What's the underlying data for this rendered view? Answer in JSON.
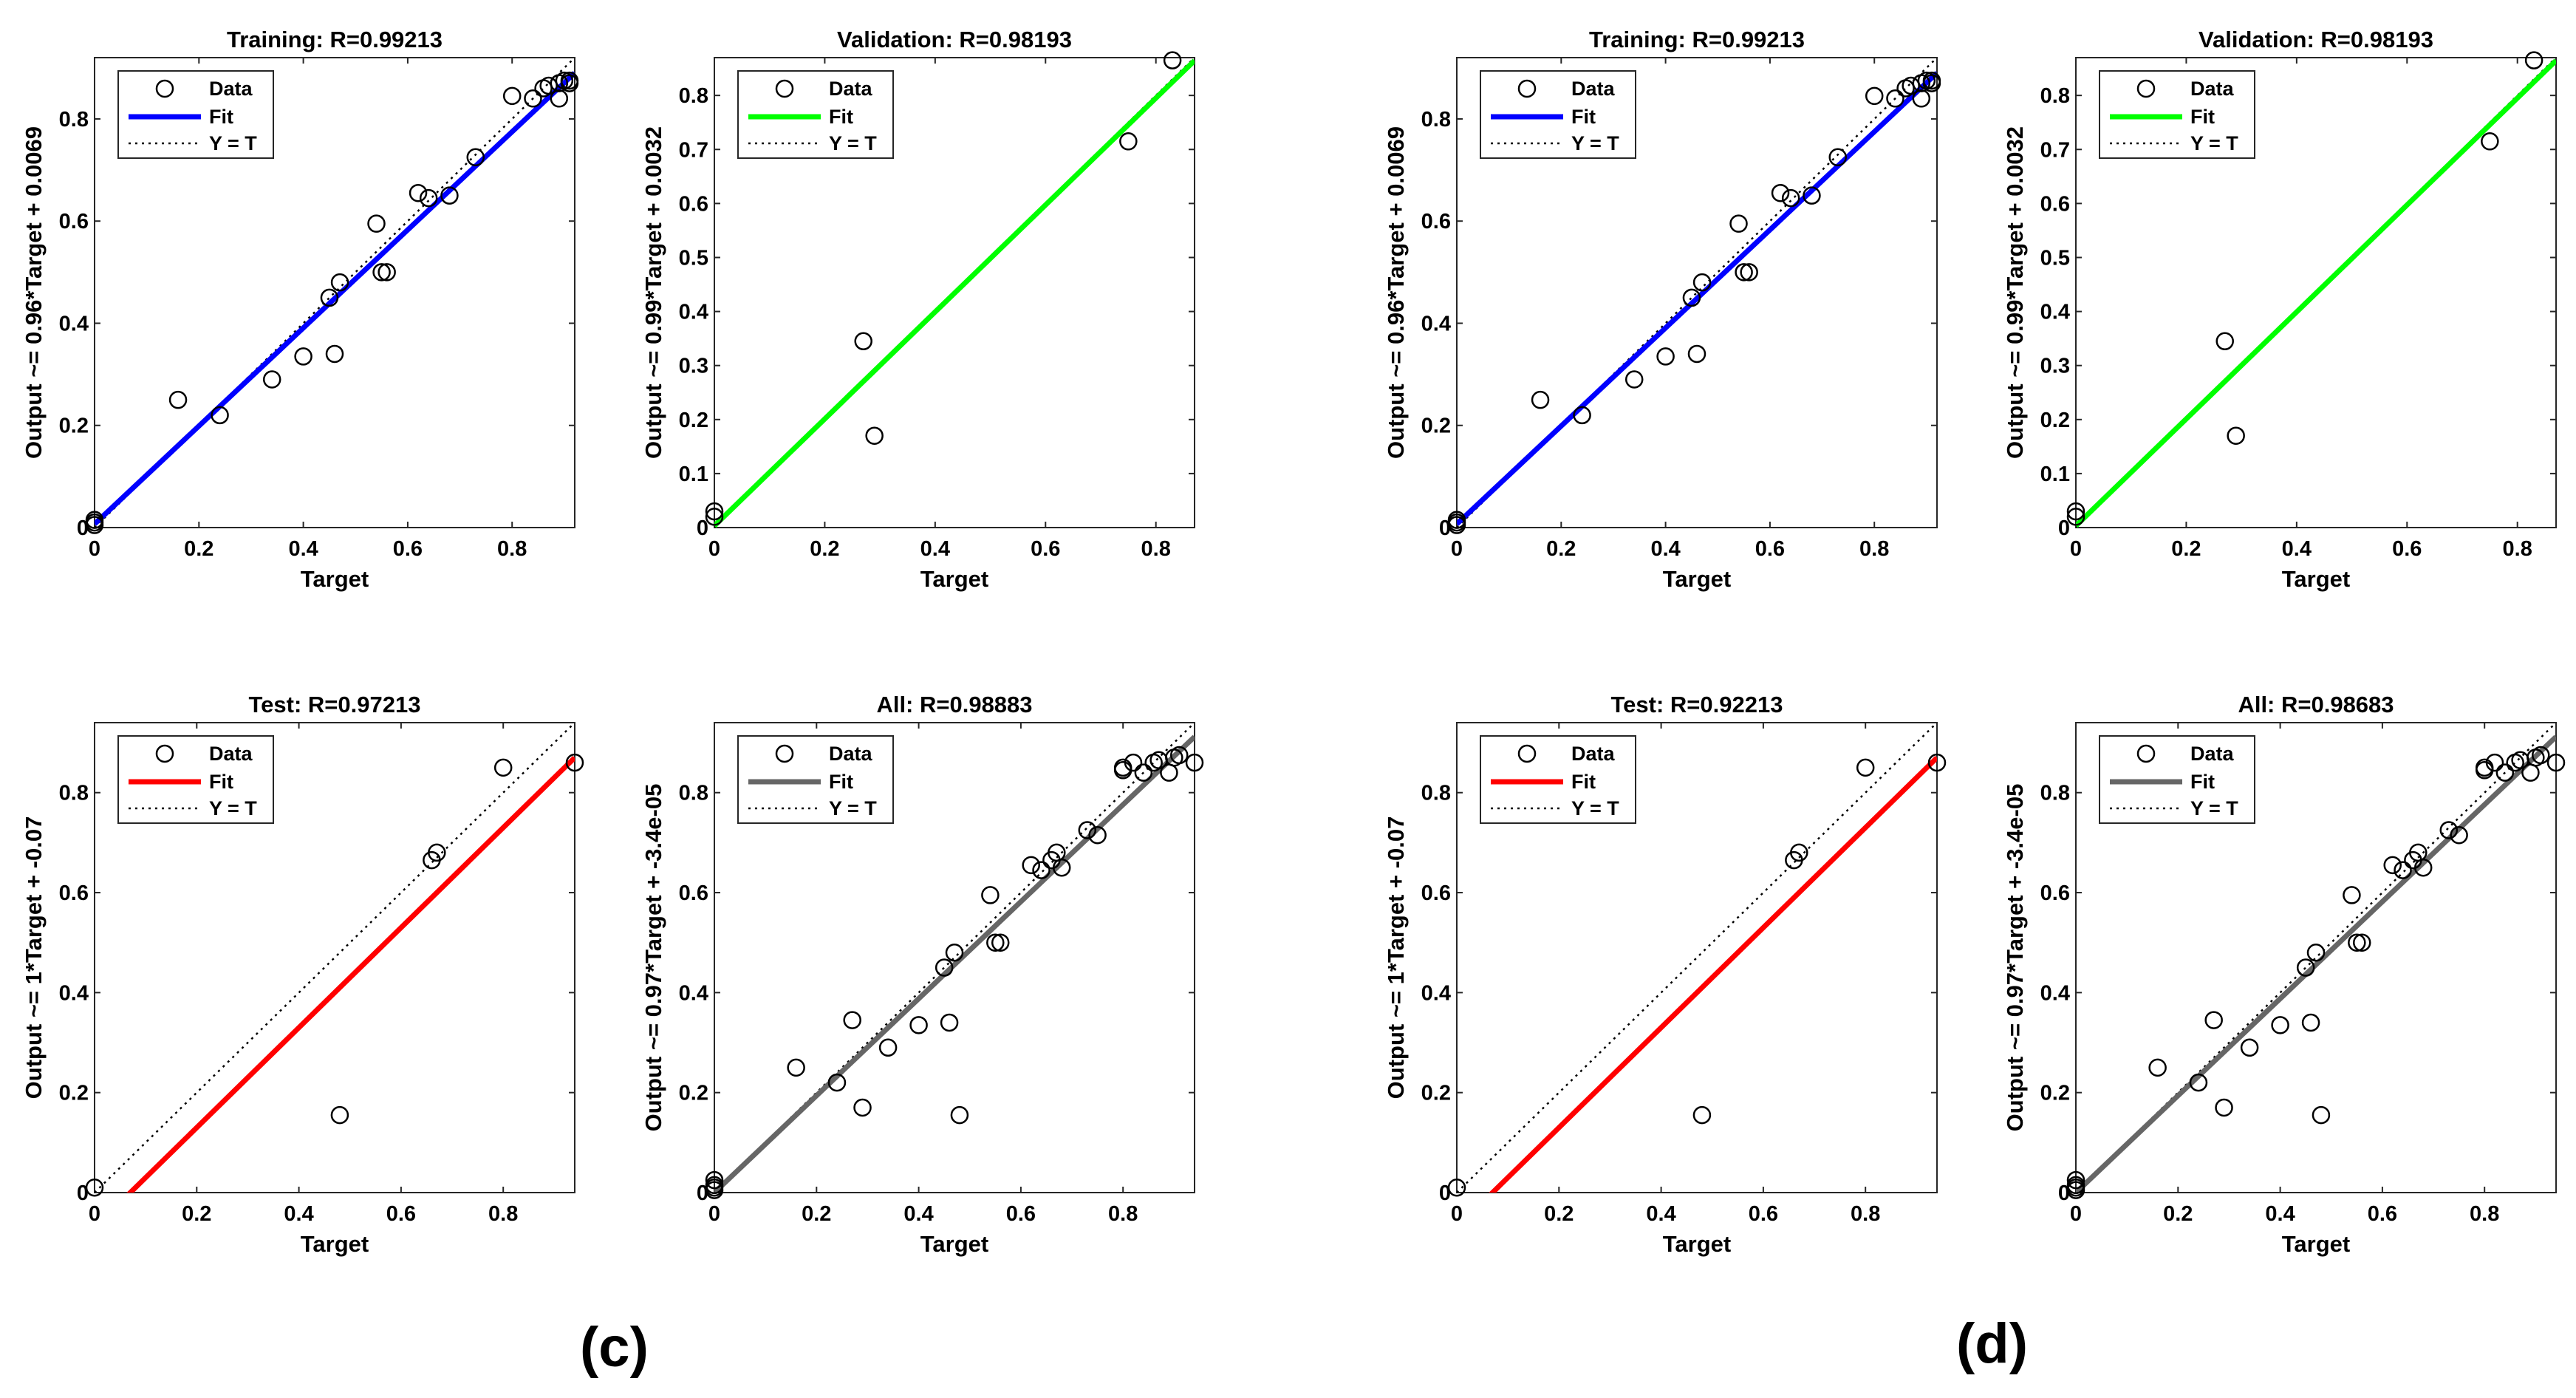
{
  "panel_labels": [
    "(c)",
    "(d)"
  ],
  "colors": {
    "training": "#0000ff",
    "validation": "#00ff00",
    "test": "#ff0000",
    "all": "#666666",
    "ideal": "#000000"
  },
  "chart_data": [
    {
      "type": "scatter",
      "group": "c",
      "title": "Training: R=0.99213",
      "xlabel": "Target",
      "ylabel": "Output ~= 0.96*Target + 0.0069",
      "xlim": [
        0,
        0.92
      ],
      "ylim": [
        0,
        0.92
      ],
      "xticks": [
        0,
        0.2,
        0.4,
        0.6,
        0.8
      ],
      "yticks": [
        0,
        0.2,
        0.4,
        0.6,
        0.8
      ],
      "legend": [
        "Data",
        "Fit",
        "Y = T"
      ],
      "legend_position": "top-left",
      "fit": {
        "slope": 0.96,
        "intercept": 0.0069,
        "color": "#0000ff"
      },
      "series": [
        {
          "name": "Data",
          "x": [
            0,
            0,
            0,
            0.16,
            0.24,
            0.34,
            0.4,
            0.45,
            0.46,
            0.47,
            0.54,
            0.55,
            0.56,
            0.62,
            0.64,
            0.68,
            0.73,
            0.8,
            0.84,
            0.86,
            0.87,
            0.89,
            0.89,
            0.9,
            0.91,
            0.91
          ],
          "y": [
            0.005,
            0.01,
            0.015,
            0.25,
            0.22,
            0.29,
            0.335,
            0.45,
            0.34,
            0.48,
            0.595,
            0.5,
            0.5,
            0.655,
            0.645,
            0.65,
            0.725,
            0.845,
            0.84,
            0.86,
            0.865,
            0.84,
            0.87,
            0.875,
            0.87,
            0.875
          ]
        }
      ]
    },
    {
      "type": "scatter",
      "group": "c",
      "title": "Validation: R=0.98193",
      "xlabel": "Target",
      "ylabel": "Output ~= 0.99*Target + 0.0032",
      "xlim": [
        0,
        0.87
      ],
      "ylim": [
        0,
        0.87
      ],
      "xticks": [
        0,
        0.2,
        0.4,
        0.6,
        0.8
      ],
      "yticks": [
        0,
        0.1,
        0.2,
        0.3,
        0.4,
        0.5,
        0.6,
        0.7,
        0.8
      ],
      "legend": [
        "Data",
        "Fit",
        "Y = T"
      ],
      "legend_position": "top-left",
      "fit": {
        "slope": 0.99,
        "intercept": 0.0032,
        "color": "#00ff00"
      },
      "series": [
        {
          "name": "Data",
          "x": [
            0,
            0,
            0.27,
            0.29,
            0.75,
            0.83
          ],
          "y": [
            0.02,
            0.03,
            0.345,
            0.17,
            0.715,
            0.865
          ]
        }
      ]
    },
    {
      "type": "scatter",
      "group": "c",
      "title": "Test: R=0.97213",
      "xlabel": "Target",
      "ylabel": "Output ~= 1*Target + -0.07",
      "xlim": [
        0,
        0.94
      ],
      "ylim": [
        0,
        0.94
      ],
      "xticks": [
        0,
        0.2,
        0.4,
        0.6,
        0.8
      ],
      "yticks": [
        0,
        0.2,
        0.4,
        0.6,
        0.8
      ],
      "legend": [
        "Data",
        "Fit",
        "Y = T"
      ],
      "legend_position": "top-left",
      "fit": {
        "slope": 1,
        "intercept": -0.07,
        "color": "#ff0000"
      },
      "series": [
        {
          "name": "Data",
          "x": [
            0,
            0.48,
            0.66,
            0.67,
            0.8,
            0.94
          ],
          "y": [
            0.01,
            0.155,
            0.665,
            0.68,
            0.85,
            0.86
          ]
        }
      ]
    },
    {
      "type": "scatter",
      "group": "c",
      "title": "All: R=0.98883",
      "xlabel": "Target",
      "ylabel": "Output ~= 0.97*Target + -3.4e-05",
      "xlim": [
        0,
        0.94
      ],
      "ylim": [
        0,
        0.94
      ],
      "xticks": [
        0,
        0.2,
        0.4,
        0.6,
        0.8
      ],
      "yticks": [
        0,
        0.2,
        0.4,
        0.6,
        0.8
      ],
      "legend": [
        "Data",
        "Fit",
        "Y = T"
      ],
      "legend_position": "top-left",
      "fit": {
        "slope": 0.97,
        "intercept": -3.4e-05,
        "color": "#666666"
      },
      "series": [
        {
          "name": "Data",
          "x": [
            0,
            0,
            0,
            0,
            0.16,
            0.24,
            0.27,
            0.29,
            0.34,
            0.4,
            0.45,
            0.46,
            0.47,
            0.48,
            0.54,
            0.55,
            0.56,
            0.62,
            0.64,
            0.66,
            0.67,
            0.68,
            0.73,
            0.75,
            0.8,
            0.8,
            0.82,
            0.84,
            0.86,
            0.87,
            0.89,
            0.9,
            0.91,
            0.94
          ],
          "y": [
            0.005,
            0.01,
            0.015,
            0.025,
            0.25,
            0.22,
            0.345,
            0.17,
            0.29,
            0.335,
            0.45,
            0.34,
            0.48,
            0.155,
            0.595,
            0.5,
            0.5,
            0.655,
            0.645,
            0.665,
            0.68,
            0.65,
            0.725,
            0.715,
            0.845,
            0.85,
            0.86,
            0.84,
            0.86,
            0.865,
            0.84,
            0.87,
            0.875,
            0.86
          ]
        }
      ]
    },
    {
      "type": "scatter",
      "group": "d",
      "title": "Training: R=0.99213",
      "xlabel": "Target",
      "ylabel": "Output ~= 0.96*Target + 0.0069",
      "xlim": [
        0,
        0.92
      ],
      "ylim": [
        0,
        0.92
      ],
      "xticks": [
        0,
        0.2,
        0.4,
        0.6,
        0.8
      ],
      "yticks": [
        0,
        0.2,
        0.4,
        0.6,
        0.8
      ],
      "legend": [
        "Data",
        "Fit",
        "Y = T"
      ],
      "legend_position": "top-left",
      "fit": {
        "slope": 0.96,
        "intercept": 0.0069,
        "color": "#0000ff"
      },
      "series": [
        {
          "name": "Data",
          "x": [
            0,
            0,
            0,
            0.16,
            0.24,
            0.34,
            0.4,
            0.45,
            0.46,
            0.47,
            0.54,
            0.55,
            0.56,
            0.62,
            0.64,
            0.68,
            0.73,
            0.8,
            0.84,
            0.86,
            0.87,
            0.89,
            0.89,
            0.9,
            0.91,
            0.91
          ],
          "y": [
            0.005,
            0.01,
            0.015,
            0.25,
            0.22,
            0.29,
            0.335,
            0.45,
            0.34,
            0.48,
            0.595,
            0.5,
            0.5,
            0.655,
            0.645,
            0.65,
            0.725,
            0.845,
            0.84,
            0.86,
            0.865,
            0.84,
            0.87,
            0.875,
            0.87,
            0.875
          ]
        }
      ]
    },
    {
      "type": "scatter",
      "group": "d",
      "title": "Validation: R=0.98193",
      "xlabel": "Target",
      "ylabel": "Output ~= 0.99*Target + 0.0032",
      "xlim": [
        0,
        0.87
      ],
      "ylim": [
        0,
        0.87
      ],
      "xticks": [
        0,
        0.2,
        0.4,
        0.6,
        0.8
      ],
      "yticks": [
        0,
        0.1,
        0.2,
        0.3,
        0.4,
        0.5,
        0.6,
        0.7,
        0.8
      ],
      "legend": [
        "Data",
        "Fit",
        "Y = T"
      ],
      "legend_position": "top-left",
      "fit": {
        "slope": 0.99,
        "intercept": 0.0032,
        "color": "#00ff00"
      },
      "series": [
        {
          "name": "Data",
          "x": [
            0,
            0,
            0.27,
            0.29,
            0.75,
            0.83
          ],
          "y": [
            0.02,
            0.03,
            0.345,
            0.17,
            0.715,
            0.865
          ]
        }
      ]
    },
    {
      "type": "scatter",
      "group": "d",
      "title": "Test: R=0.92213",
      "xlabel": "Target",
      "ylabel": "Output ~= 1*Target + -0.07",
      "xlim": [
        0,
        0.94
      ],
      "ylim": [
        0,
        0.94
      ],
      "xticks": [
        0,
        0.2,
        0.4,
        0.6,
        0.8
      ],
      "yticks": [
        0,
        0.2,
        0.4,
        0.6,
        0.8
      ],
      "legend": [
        "Data",
        "Fit",
        "Y = T"
      ],
      "legend_position": "top-left",
      "fit": {
        "slope": 1,
        "intercept": -0.07,
        "color": "#ff0000"
      },
      "series": [
        {
          "name": "Data",
          "x": [
            0,
            0.48,
            0.66,
            0.67,
            0.8,
            0.94
          ],
          "y": [
            0.01,
            0.155,
            0.665,
            0.68,
            0.85,
            0.86
          ]
        }
      ]
    },
    {
      "type": "scatter",
      "group": "d",
      "title": "All: R=0.98683",
      "xlabel": "Target",
      "ylabel": "Output ~= 0.97*Target + -3.4e-05",
      "xlim": [
        0,
        0.94
      ],
      "ylim": [
        0,
        0.94
      ],
      "xticks": [
        0,
        0.2,
        0.4,
        0.6,
        0.8
      ],
      "yticks": [
        0,
        0.2,
        0.4,
        0.6,
        0.8
      ],
      "legend": [
        "Data",
        "Fit",
        "Y = T"
      ],
      "legend_position": "top-left",
      "fit": {
        "slope": 0.97,
        "intercept": -3.4e-05,
        "color": "#666666"
      },
      "series": [
        {
          "name": "Data",
          "x": [
            0,
            0,
            0,
            0,
            0.16,
            0.24,
            0.27,
            0.29,
            0.34,
            0.4,
            0.45,
            0.46,
            0.47,
            0.48,
            0.54,
            0.55,
            0.56,
            0.62,
            0.64,
            0.66,
            0.67,
            0.68,
            0.73,
            0.75,
            0.8,
            0.8,
            0.82,
            0.84,
            0.86,
            0.87,
            0.89,
            0.9,
            0.91,
            0.94
          ],
          "y": [
            0.005,
            0.01,
            0.015,
            0.025,
            0.25,
            0.22,
            0.345,
            0.17,
            0.29,
            0.335,
            0.45,
            0.34,
            0.48,
            0.155,
            0.595,
            0.5,
            0.5,
            0.655,
            0.645,
            0.665,
            0.68,
            0.65,
            0.725,
            0.715,
            0.845,
            0.85,
            0.86,
            0.84,
            0.86,
            0.865,
            0.84,
            0.87,
            0.875,
            0.86
          ]
        }
      ]
    }
  ]
}
